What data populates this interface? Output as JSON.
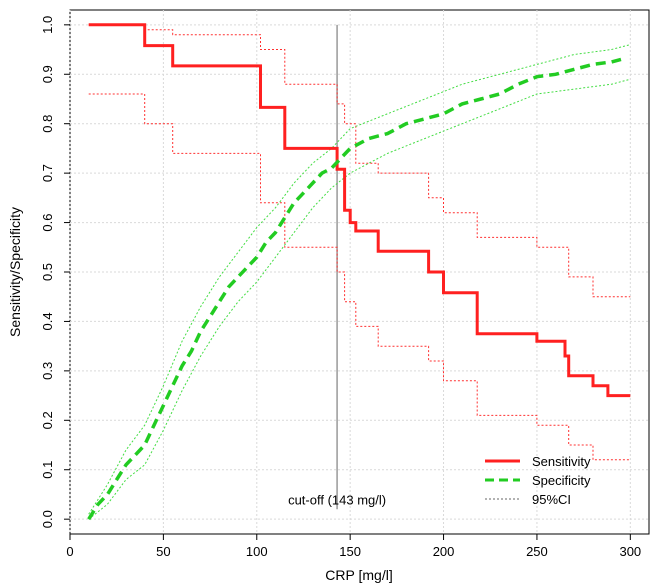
{
  "chart_data": {
    "type": "line",
    "xlabel": "CRP [mg/l]",
    "ylabel": "Sensitivity/Specificity",
    "xlim": [
      0,
      310
    ],
    "ylim": [
      -0.03,
      1.03
    ],
    "x_ticks": [
      0,
      50,
      100,
      150,
      200,
      250,
      300
    ],
    "x_tick_labels": [
      "0",
      "50",
      "100",
      "150",
      "200",
      "250",
      "300"
    ],
    "y_ticks": [
      0.0,
      0.1,
      0.2,
      0.3,
      0.4,
      0.5,
      0.6,
      0.7,
      0.8,
      0.9,
      1.0
    ],
    "y_tick_labels": [
      "0.0",
      "0.1",
      "0.2",
      "0.3",
      "0.4",
      "0.5",
      "0.6",
      "0.7",
      "0.8",
      "0.9",
      "1.0"
    ],
    "grid": true,
    "legend_position": "bottom-right",
    "legend": [
      "Sensitivity",
      "Specificity",
      "95%CI"
    ],
    "annotation": {
      "text": "cut-off (143 mg/l)",
      "x": 143
    },
    "series": [
      {
        "name": "Sensitivity",
        "color": "#ff2020",
        "style": "solid",
        "x": [
          10,
          40,
          40,
          55,
          55,
          102,
          102,
          115,
          115,
          143,
          143,
          147,
          147,
          150,
          150,
          153,
          153,
          165,
          165,
          192,
          192,
          200,
          200,
          218,
          218,
          250,
          250,
          265,
          265,
          267,
          267,
          280,
          280,
          288,
          288,
          300
        ],
        "y": [
          1.0,
          1.0,
          0.958,
          0.958,
          0.917,
          0.917,
          0.833,
          0.833,
          0.75,
          0.75,
          0.708,
          0.708,
          0.625,
          0.625,
          0.6,
          0.6,
          0.583,
          0.583,
          0.542,
          0.542,
          0.5,
          0.5,
          0.458,
          0.458,
          0.375,
          0.375,
          0.36,
          0.36,
          0.33,
          0.33,
          0.29,
          0.29,
          0.27,
          0.27,
          0.25,
          0.25
        ]
      },
      {
        "name": "Specificity",
        "color": "#22cc22",
        "style": "dashed",
        "x": [
          10,
          15,
          20,
          25,
          30,
          35,
          40,
          45,
          50,
          55,
          60,
          65,
          70,
          75,
          80,
          85,
          90,
          95,
          100,
          105,
          110,
          115,
          120,
          125,
          130,
          135,
          140,
          145,
          150,
          160,
          170,
          180,
          190,
          200,
          210,
          220,
          230,
          240,
          250,
          260,
          270,
          280,
          290,
          295
        ],
        "y": [
          0.0,
          0.03,
          0.05,
          0.08,
          0.11,
          0.13,
          0.15,
          0.19,
          0.23,
          0.27,
          0.31,
          0.34,
          0.38,
          0.41,
          0.44,
          0.47,
          0.49,
          0.51,
          0.53,
          0.56,
          0.58,
          0.61,
          0.64,
          0.66,
          0.68,
          0.7,
          0.71,
          0.73,
          0.75,
          0.77,
          0.78,
          0.8,
          0.81,
          0.82,
          0.84,
          0.85,
          0.86,
          0.88,
          0.895,
          0.9,
          0.91,
          0.92,
          0.925,
          0.93
        ]
      },
      {
        "name": "95%CI",
        "color": "#ff3030",
        "style": "dotted",
        "x": [
          10,
          40,
          40,
          55,
          55,
          102,
          102,
          115,
          115,
          143,
          143,
          147,
          147,
          153,
          153,
          165,
          165,
          192,
          192,
          200,
          200,
          218,
          218,
          250,
          250,
          267,
          267,
          280,
          280,
          300
        ],
        "y": [
          0.86,
          0.86,
          0.8,
          0.8,
          0.74,
          0.74,
          0.64,
          0.64,
          0.55,
          0.55,
          0.5,
          0.5,
          0.44,
          0.44,
          0.39,
          0.39,
          0.35,
          0.35,
          0.32,
          0.32,
          0.28,
          0.28,
          0.21,
          0.21,
          0.19,
          0.19,
          0.15,
          0.15,
          0.12,
          0.12
        ]
      },
      {
        "name": "95%CI",
        "color": "#ff3030",
        "style": "dotted",
        "x": [
          10,
          40,
          40,
          55,
          55,
          102,
          102,
          115,
          115,
          143,
          143,
          147,
          147,
          153,
          153,
          165,
          165,
          192,
          192,
          200,
          200,
          218,
          218,
          250,
          250,
          267,
          267,
          280,
          280,
          300
        ],
        "y": [
          1.0,
          1.0,
          0.99,
          0.99,
          0.98,
          0.98,
          0.95,
          0.95,
          0.88,
          0.88,
          0.84,
          0.84,
          0.8,
          0.8,
          0.72,
          0.72,
          0.7,
          0.7,
          0.65,
          0.65,
          0.62,
          0.62,
          0.57,
          0.57,
          0.55,
          0.55,
          0.49,
          0.49,
          0.45,
          0.45
        ]
      },
      {
        "name": "95%CI",
        "color": "#44dd44",
        "style": "dotted",
        "x": [
          10,
          20,
          30,
          40,
          50,
          60,
          70,
          80,
          90,
          100,
          110,
          120,
          130,
          140,
          150,
          170,
          190,
          210,
          230,
          250,
          270,
          290,
          300
        ],
        "y": [
          0.0,
          0.03,
          0.08,
          0.11,
          0.18,
          0.26,
          0.33,
          0.39,
          0.44,
          0.48,
          0.53,
          0.58,
          0.63,
          0.67,
          0.7,
          0.74,
          0.77,
          0.8,
          0.83,
          0.86,
          0.87,
          0.88,
          0.89
        ]
      },
      {
        "name": "95%CI",
        "color": "#44dd44",
        "style": "dotted",
        "x": [
          10,
          20,
          30,
          40,
          50,
          60,
          70,
          80,
          90,
          100,
          110,
          120,
          130,
          140,
          150,
          170,
          190,
          210,
          230,
          250,
          270,
          290,
          300
        ],
        "y": [
          0.01,
          0.07,
          0.14,
          0.19,
          0.27,
          0.36,
          0.43,
          0.49,
          0.54,
          0.59,
          0.63,
          0.68,
          0.72,
          0.75,
          0.79,
          0.82,
          0.85,
          0.88,
          0.9,
          0.92,
          0.94,
          0.95,
          0.96
        ]
      }
    ]
  }
}
